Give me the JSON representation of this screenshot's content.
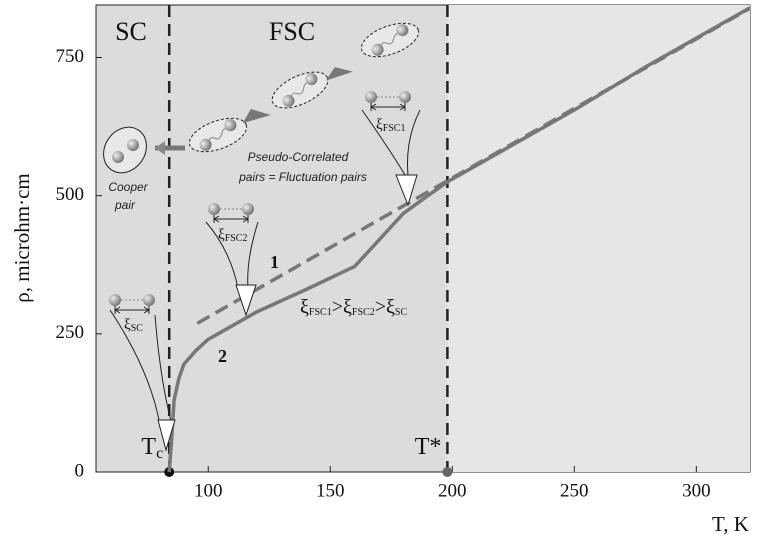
{
  "chart_data": {
    "type": "line",
    "x_label": "T, K",
    "y_label": "ρ, microhm·cm",
    "xlim": [
      54,
      322
    ],
    "ylim": [
      0,
      845
    ],
    "xticks": [
      100,
      150,
      200,
      250,
      300
    ],
    "yticks": [
      0,
      250,
      500,
      750
    ],
    "series": [
      {
        "name": "1",
        "color": "#777777",
        "dashed": true,
        "x": [
          95.5,
          322
        ],
        "values": [
          269,
          839
        ]
      },
      {
        "name": "2",
        "color": "#777777",
        "dashed": false,
        "x": [
          84,
          85,
          86,
          88,
          90,
          95,
          100,
          110,
          120,
          140,
          160,
          170,
          180,
          190,
          198,
          220,
          250,
          280,
          300,
          322
        ],
        "values": [
          0,
          60,
          130,
          170,
          195,
          220,
          240,
          265,
          290,
          330,
          372,
          420,
          468,
          500,
          525,
          580,
          655,
          735,
          785,
          840
        ]
      }
    ],
    "vlines": [
      {
        "label": "T",
        "sub": "c",
        "x": 84,
        "color": "#111111"
      },
      {
        "label": "T*",
        "x": 198,
        "color": "#666666"
      }
    ],
    "regions": [
      "SC",
      "FSC"
    ],
    "annotations": {
      "pseudo": [
        "Pseudo-Correlated",
        "pairs = Fluctuation pairs"
      ],
      "cooper": [
        "Cooper",
        "pair"
      ],
      "relation": [
        {
          "text": "ξ",
          "sub": "FSC1"
        },
        {
          "text": ">ξ",
          "sub": "FSC2"
        },
        {
          "text": ">ξ",
          "sub": "SC"
        }
      ],
      "xi_labels": [
        {
          "text": "ξ",
          "sub": "FSC1"
        },
        {
          "text": "ξ",
          "sub": "FSC2"
        },
        {
          "text": "ξ",
          "sub": "SC"
        }
      ]
    }
  }
}
